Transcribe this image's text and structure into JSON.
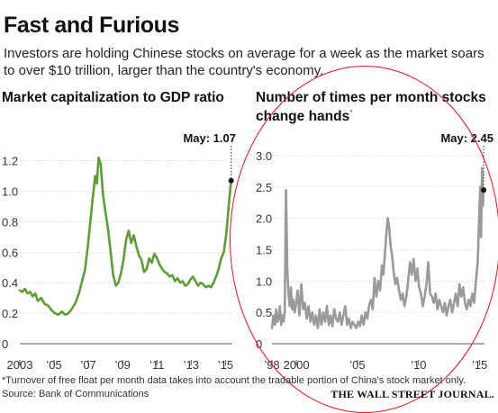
{
  "header": {
    "title": "Fast and Furious",
    "subtitle": "Investors are holding Chinese stocks on average for a week as the market soars to over $10 trillion, larger than the country's economy."
  },
  "footer": {
    "footnote": "*Turnover of free float per month data takes into account the tradable portion of China's stock market only.",
    "source": "Source: Bank of Communications",
    "publisher": "THE WALL STREET JOURNAL."
  },
  "colors": {
    "left_series": "#5c9e35",
    "right_series": "#9a9a9a",
    "annotation_circle": "#e3141a",
    "gridline": "#bdbdbd",
    "axis_text": "#333333"
  },
  "chart_data": [
    {
      "type": "line",
      "title": "Market capitalization to GDP ratio",
      "xlabel": "",
      "ylabel": "",
      "xlim": [
        2003,
        2015.4
      ],
      "ylim": [
        0,
        1.28
      ],
      "yticks": [
        0,
        0.2,
        0.4,
        0.6,
        0.8,
        1.0,
        1.2
      ],
      "ytick_labels": [
        "0",
        "0.2",
        "0.4",
        "0.6",
        "0.8",
        "1.0",
        "1.2"
      ],
      "xticks": [
        2003,
        2005,
        2007,
        2009,
        2011,
        2013,
        2015
      ],
      "xtick_labels": [
        "2003",
        "’05",
        "’07",
        "’09",
        "’11",
        "’13",
        "’15"
      ],
      "grid": "horizontal",
      "annotation": {
        "label": "May: 1.07",
        "x": 2015.33,
        "y": 1.07
      },
      "series": [
        {
          "color": "#5c9e35",
          "x": [
            2003.0,
            2003.15,
            2003.3,
            2003.45,
            2003.6,
            2003.75,
            2003.9,
            2004.05,
            2004.25,
            2004.45,
            2004.65,
            2004.85,
            2005.05,
            2005.25,
            2005.45,
            2005.65,
            2005.85,
            2006.05,
            2006.25,
            2006.45,
            2006.65,
            2006.8,
            2006.95,
            2007.1,
            2007.25,
            2007.4,
            2007.5,
            2007.6,
            2007.72,
            2007.85,
            2008.0,
            2008.15,
            2008.3,
            2008.45,
            2008.6,
            2008.75,
            2008.9,
            2009.05,
            2009.2,
            2009.35,
            2009.5,
            2009.65,
            2009.8,
            2009.95,
            2010.1,
            2010.25,
            2010.4,
            2010.55,
            2010.7,
            2010.85,
            2011.0,
            2011.15,
            2011.3,
            2011.45,
            2011.6,
            2011.75,
            2011.9,
            2012.05,
            2012.2,
            2012.35,
            2012.5,
            2012.65,
            2012.8,
            2012.95,
            2013.1,
            2013.25,
            2013.4,
            2013.55,
            2013.7,
            2013.85,
            2014.0,
            2014.15,
            2014.3,
            2014.45,
            2014.6,
            2014.75,
            2014.9,
            2015.05,
            2015.2,
            2015.33
          ],
          "y": [
            0.35,
            0.34,
            0.36,
            0.33,
            0.34,
            0.31,
            0.33,
            0.28,
            0.3,
            0.26,
            0.25,
            0.22,
            0.2,
            0.19,
            0.21,
            0.19,
            0.2,
            0.23,
            0.27,
            0.33,
            0.42,
            0.48,
            0.62,
            0.78,
            0.95,
            1.1,
            1.05,
            1.22,
            1.18,
            0.98,
            0.86,
            0.75,
            0.6,
            0.45,
            0.38,
            0.4,
            0.46,
            0.55,
            0.68,
            0.74,
            0.66,
            0.71,
            0.64,
            0.58,
            0.55,
            0.47,
            0.49,
            0.56,
            0.53,
            0.59,
            0.56,
            0.52,
            0.49,
            0.47,
            0.46,
            0.44,
            0.45,
            0.41,
            0.43,
            0.4,
            0.41,
            0.38,
            0.39,
            0.42,
            0.44,
            0.41,
            0.38,
            0.4,
            0.39,
            0.37,
            0.38,
            0.37,
            0.4,
            0.44,
            0.49,
            0.56,
            0.6,
            0.72,
            0.92,
            1.07
          ]
        }
      ]
    },
    {
      "type": "line",
      "title": "Number of times per month stocks change hands*",
      "xlabel": "",
      "ylabel": "",
      "xlim": [
        1998,
        2015.4
      ],
      "ylim": [
        0,
        3.2
      ],
      "yticks": [
        0,
        0.5,
        1.0,
        1.5,
        2.0,
        2.5,
        3.0
      ],
      "ytick_labels": [
        "0",
        "0.5",
        "1.0",
        "1.5",
        "2.0",
        "2.5",
        "3.0"
      ],
      "xticks": [
        1998,
        2000,
        2005,
        2010,
        2015
      ],
      "xtick_labels": [
        "’98",
        "2000",
        "’05",
        "’10",
        "’15"
      ],
      "grid": "horizontal",
      "annotation": {
        "label": "May: 2.45",
        "x": 2015.33,
        "y": 2.45
      },
      "series": [
        {
          "color": "#9a9a9a",
          "x": [
            1998.0,
            1998.12,
            1998.25,
            1998.35,
            1998.45,
            1998.55,
            1998.65,
            1998.75,
            1998.85,
            1998.95,
            1999.05,
            1999.15,
            1999.25,
            1999.35,
            1999.45,
            1999.55,
            1999.65,
            1999.75,
            1999.85,
            1999.95,
            2000.1,
            2000.25,
            2000.4,
            2000.55,
            2000.7,
            2000.85,
            2001.0,
            2001.15,
            2001.3,
            2001.45,
            2001.6,
            2001.75,
            2001.9,
            2002.05,
            2002.2,
            2002.35,
            2002.5,
            2002.65,
            2002.8,
            2002.95,
            2003.1,
            2003.25,
            2003.4,
            2003.55,
            2003.7,
            2003.85,
            2004.0,
            2004.15,
            2004.3,
            2004.45,
            2004.6,
            2004.75,
            2004.9,
            2005.05,
            2005.2,
            2005.35,
            2005.5,
            2005.65,
            2005.8,
            2005.95,
            2006.1,
            2006.25,
            2006.4,
            2006.55,
            2006.7,
            2006.85,
            2007.0,
            2007.12,
            2007.24,
            2007.36,
            2007.48,
            2007.6,
            2007.72,
            2007.84,
            2007.96,
            2008.1,
            2008.25,
            2008.4,
            2008.55,
            2008.7,
            2008.85,
            2009.0,
            2009.15,
            2009.3,
            2009.45,
            2009.6,
            2009.75,
            2009.9,
            2010.05,
            2010.2,
            2010.35,
            2010.5,
            2010.65,
            2010.8,
            2010.95,
            2011.1,
            2011.25,
            2011.4,
            2011.55,
            2011.7,
            2011.85,
            2012.0,
            2012.15,
            2012.3,
            2012.45,
            2012.6,
            2012.75,
            2012.9,
            2013.05,
            2013.2,
            2013.35,
            2013.5,
            2013.65,
            2013.8,
            2013.95,
            2014.1,
            2014.25,
            2014.4,
            2014.55,
            2014.7,
            2014.85,
            2014.95,
            2015.05,
            2015.12,
            2015.2,
            2015.27,
            2015.33
          ],
          "y": [
            0.25,
            0.45,
            0.3,
            0.55,
            0.35,
            0.4,
            0.6,
            0.3,
            0.45,
            0.35,
            0.5,
            2.45,
            1.2,
            0.8,
            0.6,
            0.9,
            0.55,
            0.7,
            0.5,
            0.6,
            0.85,
            0.45,
            0.95,
            0.55,
            0.65,
            0.4,
            0.6,
            0.35,
            0.5,
            0.3,
            0.45,
            0.25,
            0.55,
            0.3,
            0.5,
            0.35,
            0.6,
            0.3,
            0.45,
            0.28,
            0.55,
            0.4,
            0.35,
            0.5,
            0.3,
            0.45,
            0.6,
            0.3,
            0.4,
            0.25,
            0.35,
            0.3,
            0.25,
            0.35,
            0.28,
            0.45,
            0.3,
            0.5,
            0.4,
            0.6,
            0.7,
            0.55,
            1.05,
            0.75,
            1.0,
            0.85,
            1.25,
            1.1,
            1.4,
            1.75,
            2.0,
            1.85,
            1.55,
            1.4,
            1.15,
            0.95,
            1.05,
            0.85,
            0.7,
            0.8,
            0.6,
            0.75,
            1.0,
            1.3,
            1.1,
            1.35,
            1.0,
            1.2,
            0.9,
            0.8,
            0.6,
            0.75,
            0.95,
            1.3,
            0.8,
            0.75,
            0.65,
            0.8,
            0.55,
            0.7,
            0.6,
            0.5,
            0.65,
            0.45,
            0.6,
            0.7,
            0.5,
            0.65,
            0.8,
            0.6,
            0.95,
            0.75,
            0.9,
            0.65,
            0.55,
            0.7,
            0.6,
            0.8,
            0.65,
            1.0,
            1.3,
            1.95,
            2.5,
            1.7,
            2.8,
            2.2,
            2.45
          ]
        }
      ]
    }
  ]
}
